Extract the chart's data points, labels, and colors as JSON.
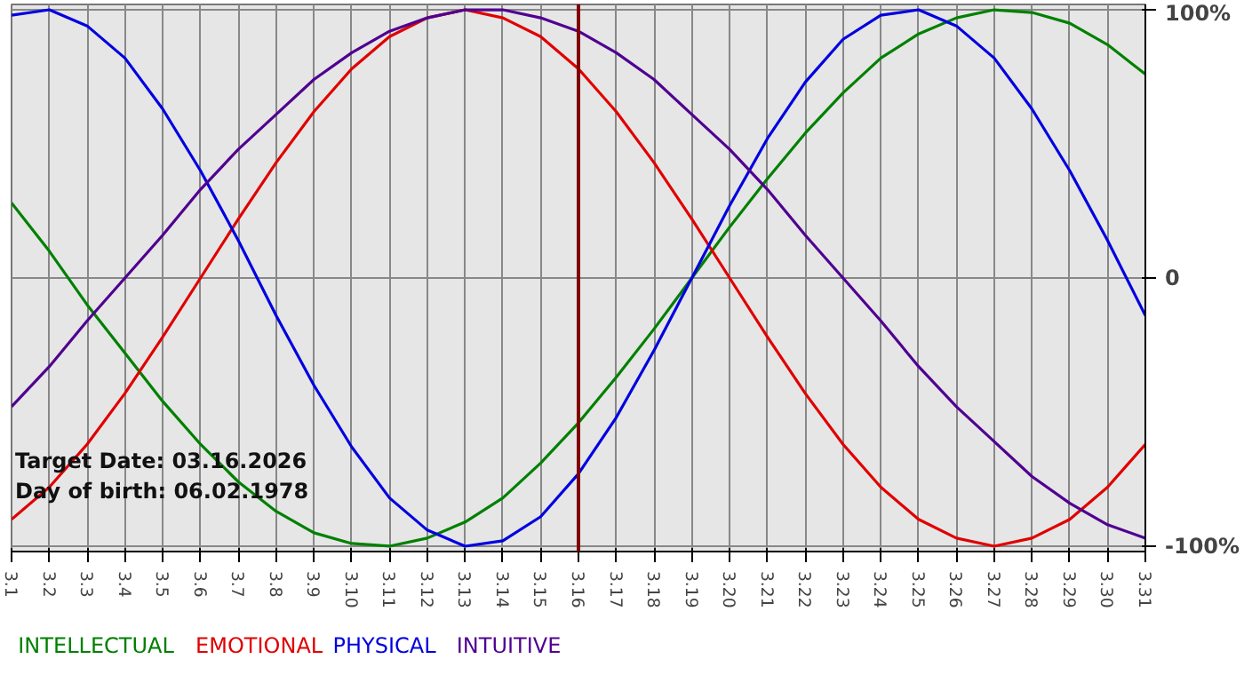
{
  "chart_data": {
    "type": "line",
    "categories": [
      "3.1",
      "3.2",
      "3.3",
      "3.4",
      "3.5",
      "3.6",
      "3.7",
      "3.8",
      "3.9",
      "3.10",
      "3.11",
      "3.12",
      "3.13",
      "3.14",
      "3.15",
      "3.16",
      "3.17",
      "3.18",
      "3.19",
      "3.20",
      "3.21",
      "3.22",
      "3.23",
      "3.24",
      "3.25",
      "3.26",
      "3.27",
      "3.28",
      "3.29",
      "3.30",
      "3.31"
    ],
    "series": [
      {
        "name": "INTELLECTUAL",
        "color": "#008000",
        "values": [
          28,
          10,
          -10,
          -28,
          -46,
          -62,
          -76,
          -87,
          -95,
          -99,
          -100,
          -97,
          -91,
          -82,
          -69,
          -54,
          -37,
          -19,
          0,
          19,
          37,
          54,
          69,
          82,
          91,
          97,
          100,
          99,
          95,
          87,
          76
        ]
      },
      {
        "name": "EMOTIONAL",
        "color": "#e00000",
        "values": [
          -90,
          -78,
          -62,
          -43,
          -22,
          0,
          22,
          43,
          62,
          78,
          90,
          97,
          100,
          97,
          90,
          78,
          62,
          43,
          22,
          0,
          -22,
          -43,
          -62,
          -78,
          -90,
          -97,
          -100,
          -97,
          -90,
          -78,
          -62
        ]
      },
      {
        "name": "PHYSICAL",
        "color": "#0000e0",
        "values": [
          98,
          100,
          94,
          82,
          63,
          40,
          14,
          -14,
          -40,
          -63,
          -82,
          -94,
          -100,
          -98,
          -89,
          -73,
          -52,
          -27,
          0,
          27,
          52,
          73,
          89,
          98,
          100,
          94,
          82,
          63,
          40,
          14,
          -14
        ]
      },
      {
        "name": "INTUITIVE",
        "color": "#500090",
        "values": [
          -48,
          -33,
          -16,
          0,
          16,
          33,
          48,
          61,
          74,
          84,
          92,
          97,
          100,
          100,
          97,
          92,
          84,
          74,
          61,
          48,
          33,
          16,
          0,
          -16,
          -33,
          -48,
          -61,
          -74,
          -84,
          -92,
          -97
        ]
      }
    ],
    "ylim": [
      -102,
      102
    ],
    "yticks": [
      {
        "value": 100,
        "label": "100%"
      },
      0,
      {
        "value": -100,
        "label": "-100%"
      }
    ],
    "grid": true,
    "ref_lines": [
      {
        "axis": "x",
        "value": "3.16",
        "color": "#800000"
      }
    ],
    "annotations": [
      "Target Date: 03.16.2026",
      "Day of birth: 06.02.1978"
    ]
  }
}
